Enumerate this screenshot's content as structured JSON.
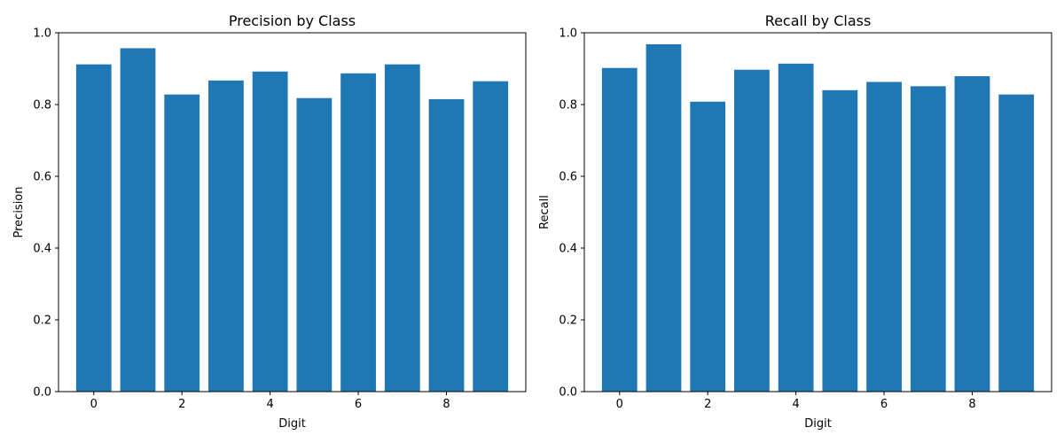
{
  "chart_data": [
    {
      "type": "bar",
      "title": "Precision by Class",
      "xlabel": "Digit",
      "ylabel": "Precision",
      "categories": [
        0,
        1,
        2,
        3,
        4,
        5,
        6,
        7,
        8,
        9
      ],
      "values": [
        0.912,
        0.957,
        0.828,
        0.867,
        0.892,
        0.818,
        0.887,
        0.912,
        0.815,
        0.865
      ],
      "xlim": [
        -0.8,
        9.8
      ],
      "ylim": [
        0,
        1.0
      ],
      "xticks": [
        "0",
        "2",
        "4",
        "6",
        "8"
      ],
      "yticks": [
        "0.0",
        "0.2",
        "0.4",
        "0.6",
        "0.8",
        "1.0"
      ],
      "grid": false,
      "bar_color": "#1f77b4"
    },
    {
      "type": "bar",
      "title": "Recall by Class",
      "xlabel": "Digit",
      "ylabel": "Recall",
      "categories": [
        0,
        1,
        2,
        3,
        4,
        5,
        6,
        7,
        8,
        9
      ],
      "values": [
        0.902,
        0.968,
        0.808,
        0.897,
        0.914,
        0.84,
        0.863,
        0.851,
        0.879,
        0.828
      ],
      "xlim": [
        -0.8,
        9.8
      ],
      "ylim": [
        0,
        1.0
      ],
      "xticks": [
        "0",
        "2",
        "4",
        "6",
        "8"
      ],
      "yticks": [
        "0.0",
        "0.2",
        "0.4",
        "0.6",
        "0.8",
        "1.0"
      ],
      "grid": false,
      "bar_color": "#1f77b4"
    }
  ]
}
